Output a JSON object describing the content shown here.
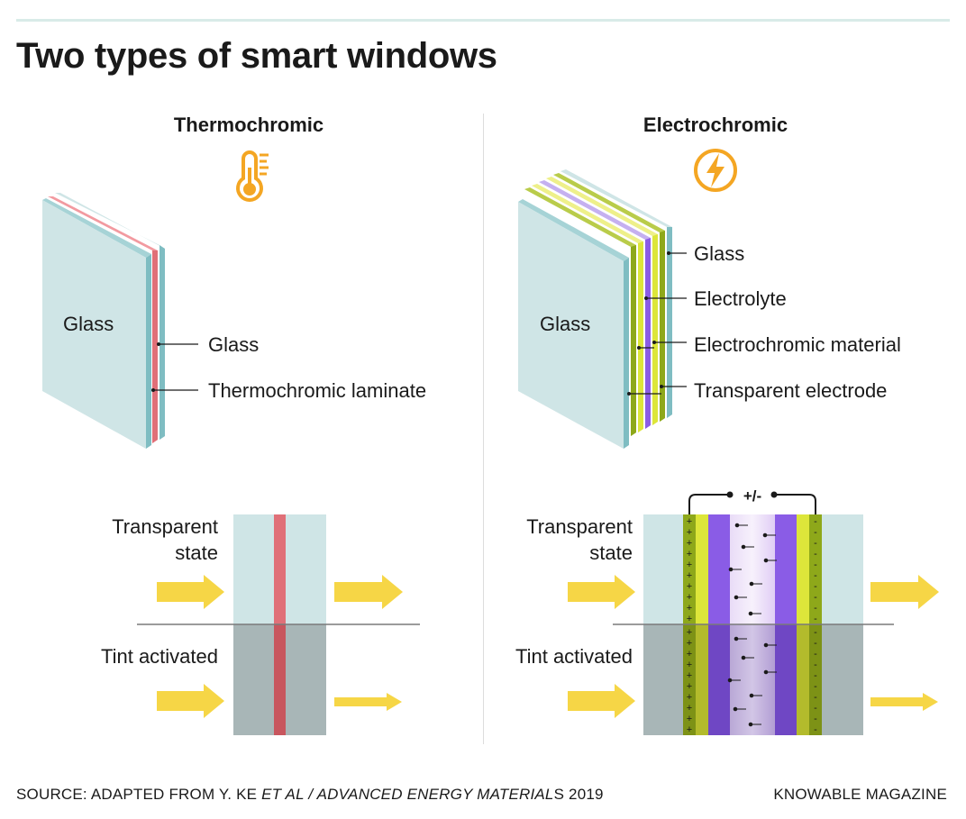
{
  "title": "Two types of smart windows",
  "thermo": {
    "heading": "Thermochromic",
    "icon": "thermometer-icon",
    "front_label": "Glass",
    "callouts": [
      "Glass",
      "Thermochromic laminate"
    ],
    "state_transparent": [
      "Transparent",
      "state"
    ],
    "state_tint": "Tint activated"
  },
  "electro": {
    "heading": "Electrochromic",
    "icon": "lightning-icon",
    "front_label": "Glass",
    "callouts": [
      "Glass",
      "Electrolyte",
      "Electrochromic material",
      "Transparent electrode"
    ],
    "voltage": "+/-",
    "state_transparent": [
      "Transparent",
      "state"
    ],
    "state_tint": "Tint activated"
  },
  "footer": {
    "source_prefix": "SOURCE: ADAPTED FROM Y. KE ",
    "source_italic": "ET AL / ADVANCED ENERGY MATERIAL",
    "source_suffix": "S 2019",
    "credit": "KNOWABLE MAGAZINE"
  },
  "colors": {
    "glass": "#cfe5e6",
    "glass_edge": "#7fbdc2",
    "laminate": "#e07078",
    "tint_glass": "#a8b6b7",
    "electrode": "#8ea81a",
    "electrochromic": "#dde63a",
    "electrolyte": "#8a5ce6",
    "arrow": "#f6d646",
    "icon": "#f4a623"
  }
}
